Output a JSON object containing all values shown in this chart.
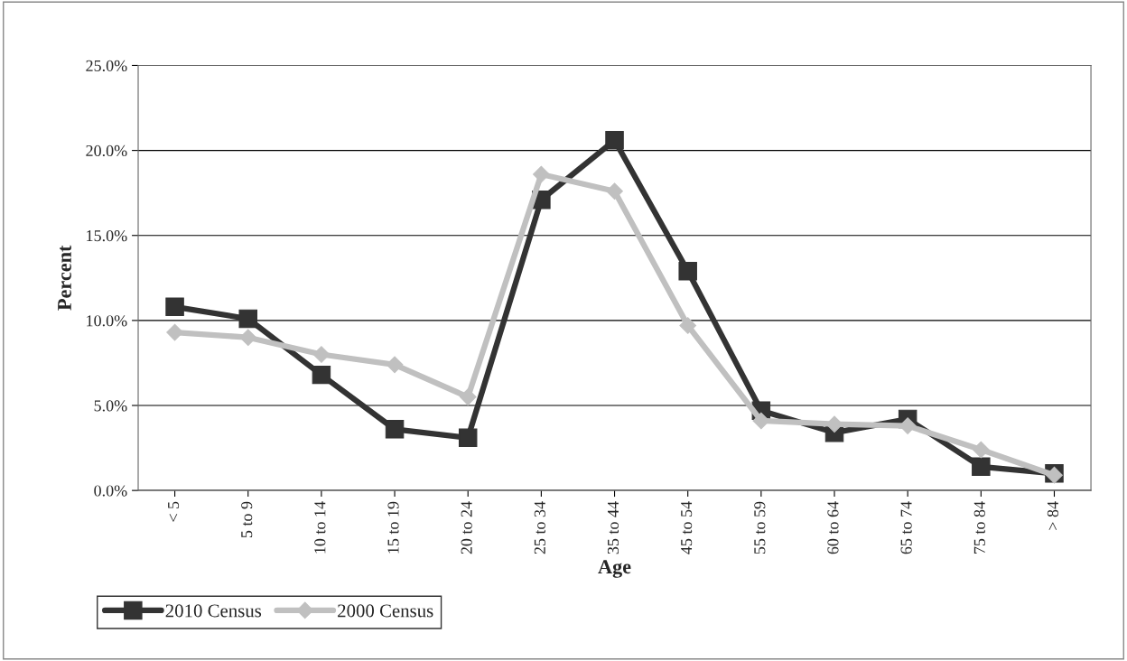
{
  "chart_data": {
    "type": "line",
    "xlabel": "Age",
    "ylabel": "Percent",
    "categories": [
      "< 5",
      "5 to 9",
      "10 to 14",
      "15 to 19",
      "20 to 24",
      "25 to 34",
      "35 to 44",
      "45 to 54",
      "55 to 59",
      "60 to 64",
      "65 to 74",
      "75 to 84",
      "> 84"
    ],
    "series": [
      {
        "name": "2010 Census",
        "color": "#333333",
        "marker": "square",
        "values": [
          10.8,
          10.1,
          6.8,
          3.6,
          3.1,
          17.1,
          20.6,
          12.9,
          4.7,
          3.4,
          4.2,
          1.4,
          1.0
        ]
      },
      {
        "name": "2000 Census",
        "color": "#c0c0c0",
        "marker": "diamond",
        "values": [
          9.3,
          9.0,
          8.0,
          7.4,
          5.5,
          18.6,
          17.6,
          9.7,
          4.1,
          3.9,
          3.8,
          2.4,
          0.9
        ]
      }
    ],
    "ylim": [
      0,
      25
    ],
    "yticks": [
      {
        "value": 0,
        "label": "0.0%"
      },
      {
        "value": 5,
        "label": "5.0%"
      },
      {
        "value": 10,
        "label": "10.0%"
      },
      {
        "value": 15,
        "label": "15.0%"
      },
      {
        "value": 20,
        "label": "20.0%"
      },
      {
        "value": 25,
        "label": "25.0%"
      }
    ],
    "grid": "y",
    "legend": "bottom left",
    "line_style": "solid"
  }
}
